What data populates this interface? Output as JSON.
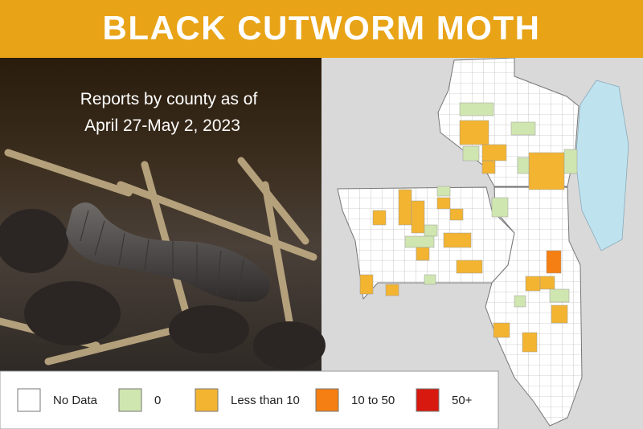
{
  "header": {
    "title": "BLACK CUTWORM MOTH"
  },
  "photo": {
    "caption": [
      "Reports by county as of",
      "April 27-May 2, 2023"
    ]
  },
  "legend": {
    "items": [
      {
        "label": "No Data",
        "color": "#ffffff"
      },
      {
        "label": "0",
        "color": "#cfe6b0"
      },
      {
        "label": "Less than 10",
        "color": "#f3b431"
      },
      {
        "label": "10 to 50",
        "color": "#f57f12"
      },
      {
        "label": "50+",
        "color": "#d7190f"
      }
    ]
  }
}
